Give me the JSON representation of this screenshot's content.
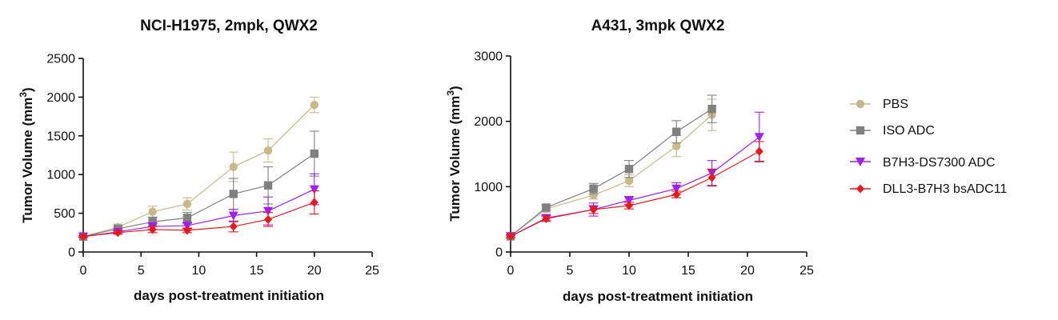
{
  "chart_data": [
    {
      "type": "line",
      "title": "NCI-H1975, 2mpk, QWX2",
      "xlabel": "days post-treatment initiation",
      "ylabel": "Tumor Volume (mm",
      "ylabel_superscript": "3",
      "ylabel_close": ")",
      "xlim": [
        0,
        25
      ],
      "ylim": [
        0,
        2500
      ],
      "xticks": [
        0,
        5,
        10,
        15,
        20,
        25
      ],
      "yticks": [
        0,
        500,
        1000,
        1500,
        2000,
        2500
      ],
      "series": [
        {
          "name": "PBS",
          "color": "#c8b98a",
          "marker": "circle",
          "x": [
            0,
            3,
            6,
            9,
            13,
            16,
            20
          ],
          "y": [
            200,
            320,
            520,
            620,
            1100,
            1310,
            1900
          ],
          "err": [
            10,
            40,
            70,
            80,
            190,
            150,
            100
          ]
        },
        {
          "name": "ISO ADC",
          "color": "#808080",
          "marker": "square",
          "x": [
            0,
            3,
            6,
            9,
            13,
            16,
            20
          ],
          "y": [
            200,
            300,
            390,
            440,
            750,
            860,
            1270
          ],
          "err": [
            10,
            30,
            60,
            70,
            200,
            240,
            290
          ]
        },
        {
          "name": "B7H3-DS7300 ADC",
          "color": "#a020f0",
          "marker": "triangle-down",
          "x": [
            0,
            3,
            6,
            9,
            13,
            16,
            20
          ],
          "y": [
            200,
            260,
            330,
            340,
            470,
            530,
            810
          ],
          "err": [
            10,
            25,
            40,
            40,
            80,
            180,
            200
          ]
        },
        {
          "name": "DLL3-B7H3 bsADC11",
          "color": "#e8191e",
          "marker": "diamond",
          "x": [
            0,
            3,
            6,
            9,
            13,
            16,
            20
          ],
          "y": [
            200,
            250,
            290,
            280,
            330,
            420,
            640
          ],
          "err": [
            10,
            20,
            40,
            30,
            70,
            90,
            150
          ]
        }
      ]
    },
    {
      "type": "line",
      "title": "A431, 3mpk QWX2",
      "xlabel": "days post-treatment initiation",
      "ylabel": "Tumor Volume (mm",
      "ylabel_superscript": "3",
      "ylabel_close": ")",
      "xlim": [
        0,
        25
      ],
      "ylim": [
        0,
        3000
      ],
      "xticks": [
        0,
        5,
        10,
        15,
        20,
        25
      ],
      "yticks": [
        0,
        1000,
        2000,
        3000
      ],
      "series": [
        {
          "name": "PBS",
          "color": "#c8b98a",
          "marker": "circle",
          "x": [
            0,
            3,
            7,
            10,
            14,
            17
          ],
          "y": [
            240,
            660,
            870,
            1090,
            1620,
            2100
          ],
          "err": [
            20,
            50,
            60,
            90,
            160,
            240
          ]
        },
        {
          "name": "ISO ADC",
          "color": "#808080",
          "marker": "square",
          "x": [
            0,
            3,
            7,
            10,
            14,
            17
          ],
          "y": [
            240,
            680,
            970,
            1270,
            1840,
            2190
          ],
          "err": [
            20,
            40,
            80,
            130,
            170,
            210
          ]
        },
        {
          "name": "B7H3-DS7300 ADC",
          "color": "#a020f0",
          "marker": "triangle-down",
          "x": [
            0,
            3,
            7,
            10,
            14,
            17,
            21
          ],
          "y": [
            240,
            520,
            650,
            790,
            970,
            1210,
            1760
          ],
          "err": [
            20,
            40,
            100,
            60,
            90,
            190,
            380
          ]
        },
        {
          "name": "DLL3-B7H3 bsADC11",
          "color": "#e8191e",
          "marker": "diamond",
          "x": [
            0,
            3,
            7,
            10,
            14,
            17,
            21
          ],
          "y": [
            240,
            510,
            650,
            710,
            880,
            1140,
            1540
          ],
          "err": [
            20,
            40,
            60,
            50,
            50,
            130,
            150
          ]
        }
      ]
    }
  ],
  "legend": {
    "placement": "right",
    "items": [
      {
        "label": "PBS",
        "color": "#c8b98a",
        "marker": "circle"
      },
      {
        "label": "ISO ADC",
        "color": "#808080",
        "marker": "square"
      },
      {
        "label": "B7H3-DS7300 ADC",
        "color": "#a020f0",
        "marker": "triangle-down"
      },
      {
        "label": "DLL3-B7H3 bsADC11",
        "color": "#e8191e",
        "marker": "diamond"
      }
    ]
  }
}
